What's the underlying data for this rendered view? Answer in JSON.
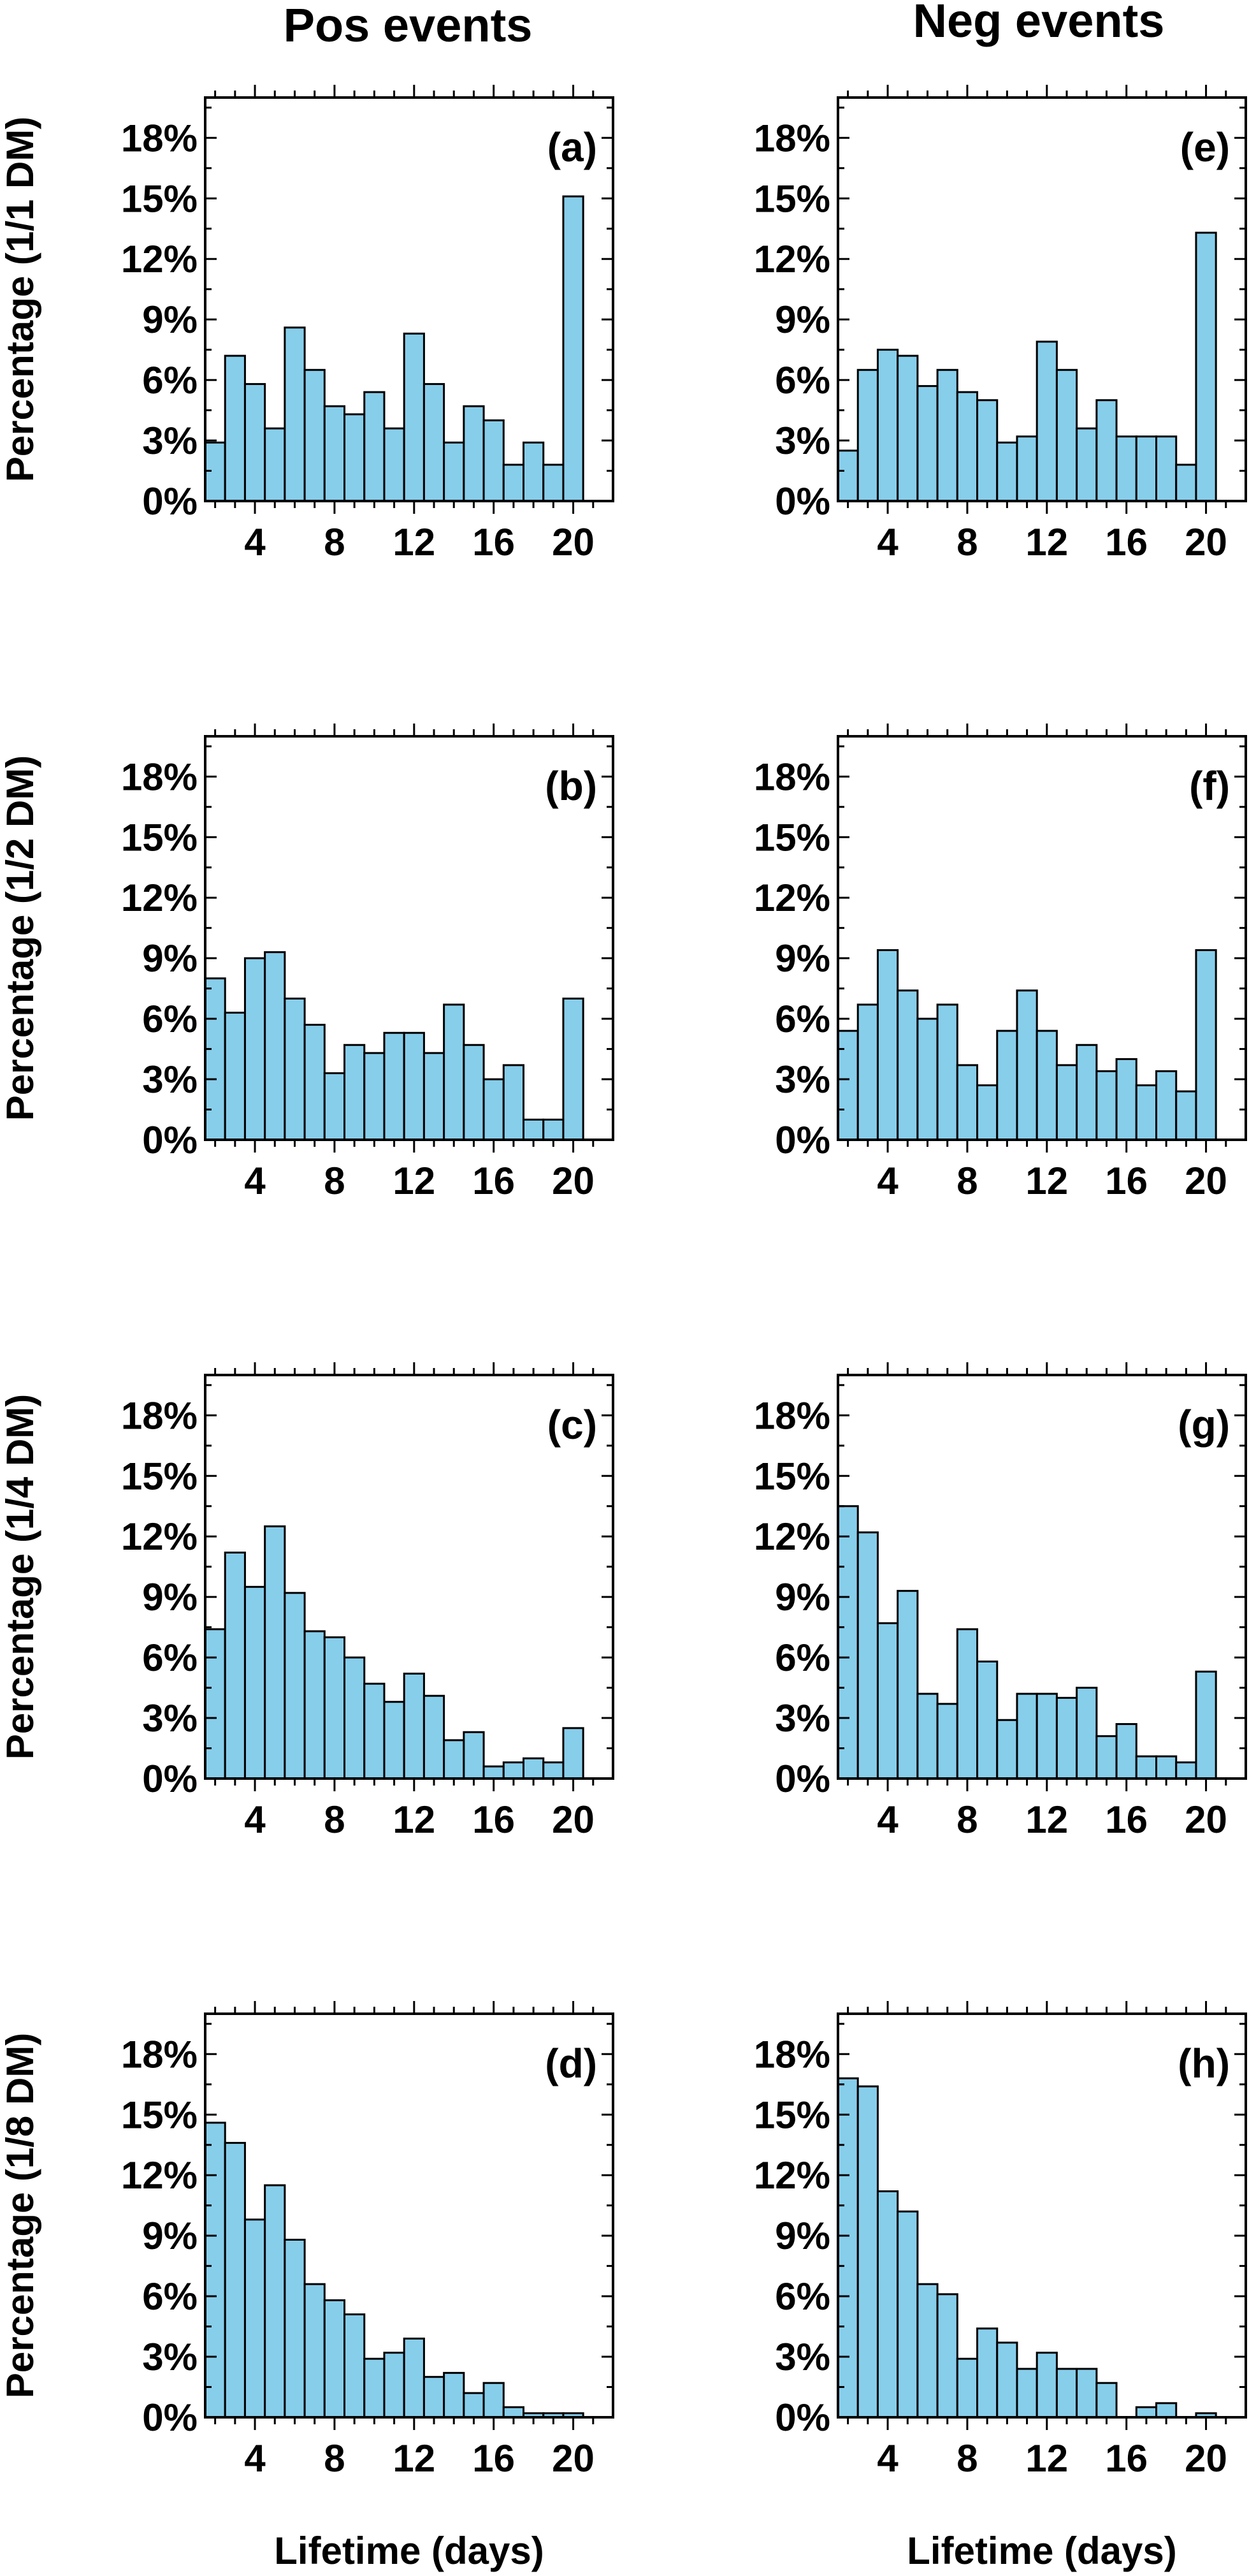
{
  "column_titles": [
    "Pos events",
    "Neg events"
  ],
  "chart_data": [
    {
      "type": "bar",
      "panel_label": "(a)",
      "column": 0,
      "row": 0,
      "ylabel": "Percentage (1/1 DM)",
      "xlabel": "",
      "x": [
        2,
        3,
        4,
        5,
        6,
        7,
        8,
        9,
        10,
        11,
        12,
        13,
        14,
        15,
        16,
        17,
        18,
        19,
        20,
        21
      ],
      "values": [
        2.9,
        7.2,
        5.8,
        3.6,
        8.6,
        6.5,
        4.7,
        4.3,
        5.4,
        3.6,
        8.3,
        5.8,
        2.9,
        4.7,
        4.0,
        1.8,
        2.9,
        1.8,
        15.1,
        0
      ],
      "ylim": [
        0,
        20
      ],
      "yticks": [
        "0%",
        "3%",
        "6%",
        "9%",
        "12%",
        "15%",
        "18%"
      ],
      "xticks": [
        "4",
        "8",
        "12",
        "16",
        "20"
      ]
    },
    {
      "type": "bar",
      "panel_label": "(b)",
      "column": 0,
      "row": 1,
      "ylabel": "Percentage (1/2 DM)",
      "xlabel": "",
      "x": [
        2,
        3,
        4,
        5,
        6,
        7,
        8,
        9,
        10,
        11,
        12,
        13,
        14,
        15,
        16,
        17,
        18,
        19,
        20,
        21
      ],
      "values": [
        8.0,
        6.3,
        9.0,
        9.3,
        7.0,
        5.7,
        3.3,
        4.7,
        4.3,
        5.3,
        5.3,
        4.3,
        6.7,
        4.7,
        3.0,
        3.7,
        1.0,
        1.0,
        7.0,
        0
      ],
      "ylim": [
        0,
        20
      ],
      "yticks": [
        "0%",
        "3%",
        "6%",
        "9%",
        "12%",
        "15%",
        "18%"
      ],
      "xticks": [
        "4",
        "8",
        "12",
        "16",
        "20"
      ]
    },
    {
      "type": "bar",
      "panel_label": "(c)",
      "column": 0,
      "row": 2,
      "ylabel": "Percentage (1/4 DM)",
      "xlabel": "",
      "x": [
        2,
        3,
        4,
        5,
        6,
        7,
        8,
        9,
        10,
        11,
        12,
        13,
        14,
        15,
        16,
        17,
        18,
        19,
        20,
        21
      ],
      "values": [
        7.4,
        11.2,
        9.5,
        12.5,
        9.2,
        7.3,
        7.0,
        6.0,
        4.7,
        3.8,
        5.2,
        4.1,
        1.9,
        2.3,
        0.6,
        0.8,
        1.0,
        0.8,
        2.5,
        0
      ],
      "ylim": [
        0,
        20
      ],
      "yticks": [
        "0%",
        "3%",
        "6%",
        "9%",
        "12%",
        "15%",
        "18%"
      ],
      "xticks": [
        "4",
        "8",
        "12",
        "16",
        "20"
      ]
    },
    {
      "type": "bar",
      "panel_label": "(d)",
      "column": 0,
      "row": 3,
      "ylabel": "Percentage (1/8 DM)",
      "xlabel": "Lifetime (days)",
      "x": [
        2,
        3,
        4,
        5,
        6,
        7,
        8,
        9,
        10,
        11,
        12,
        13,
        14,
        15,
        16,
        17,
        18,
        19,
        20,
        21
      ],
      "values": [
        14.6,
        13.6,
        9.8,
        11.5,
        8.8,
        6.6,
        5.8,
        5.1,
        2.9,
        3.2,
        3.9,
        2.0,
        2.2,
        1.2,
        1.7,
        0.5,
        0.2,
        0.2,
        0.2,
        0
      ],
      "ylim": [
        0,
        20
      ],
      "yticks": [
        "0%",
        "3%",
        "6%",
        "9%",
        "12%",
        "15%",
        "18%"
      ],
      "xticks": [
        "4",
        "8",
        "12",
        "16",
        "20"
      ]
    },
    {
      "type": "bar",
      "panel_label": "(e)",
      "column": 1,
      "row": 0,
      "ylabel": "",
      "xlabel": "",
      "x": [
        2,
        3,
        4,
        5,
        6,
        7,
        8,
        9,
        10,
        11,
        12,
        13,
        14,
        15,
        16,
        17,
        18,
        19,
        20,
        21
      ],
      "values": [
        2.5,
        6.5,
        7.5,
        7.2,
        5.7,
        6.5,
        5.4,
        5.0,
        2.9,
        3.2,
        7.9,
        6.5,
        3.6,
        5.0,
        3.2,
        3.2,
        3.2,
        1.8,
        13.3,
        0
      ],
      "ylim": [
        0,
        20
      ],
      "yticks": [
        "0%",
        "3%",
        "6%",
        "9%",
        "12%",
        "15%",
        "18%"
      ],
      "xticks": [
        "4",
        "8",
        "12",
        "16",
        "20"
      ]
    },
    {
      "type": "bar",
      "panel_label": "(f)",
      "column": 1,
      "row": 1,
      "ylabel": "",
      "xlabel": "",
      "x": [
        2,
        3,
        4,
        5,
        6,
        7,
        8,
        9,
        10,
        11,
        12,
        13,
        14,
        15,
        16,
        17,
        18,
        19,
        20,
        21
      ],
      "values": [
        5.4,
        6.7,
        9.4,
        7.4,
        6.0,
        6.7,
        3.7,
        2.7,
        5.4,
        7.4,
        5.4,
        3.7,
        4.7,
        3.4,
        4.0,
        2.7,
        3.4,
        2.4,
        9.4,
        0
      ],
      "ylim": [
        0,
        20
      ],
      "yticks": [
        "0%",
        "3%",
        "6%",
        "9%",
        "12%",
        "15%",
        "18%"
      ],
      "xticks": [
        "4",
        "8",
        "12",
        "16",
        "20"
      ]
    },
    {
      "type": "bar",
      "panel_label": "(g)",
      "column": 1,
      "row": 2,
      "ylabel": "",
      "xlabel": "",
      "x": [
        2,
        3,
        4,
        5,
        6,
        7,
        8,
        9,
        10,
        11,
        12,
        13,
        14,
        15,
        16,
        17,
        18,
        19,
        20,
        21
      ],
      "values": [
        13.5,
        12.2,
        7.7,
        9.3,
        4.2,
        3.7,
        7.4,
        5.8,
        2.9,
        4.2,
        4.2,
        4.0,
        4.5,
        2.1,
        2.7,
        1.1,
        1.1,
        0.8,
        5.3,
        0
      ],
      "ylim": [
        0,
        20
      ],
      "yticks": [
        "0%",
        "3%",
        "6%",
        "9%",
        "12%",
        "15%",
        "18%"
      ],
      "xticks": [
        "4",
        "8",
        "12",
        "16",
        "20"
      ]
    },
    {
      "type": "bar",
      "panel_label": "(h)",
      "column": 1,
      "row": 3,
      "ylabel": "",
      "xlabel": "Lifetime (days)",
      "x": [
        2,
        3,
        4,
        5,
        6,
        7,
        8,
        9,
        10,
        11,
        12,
        13,
        14,
        15,
        16,
        17,
        18,
        19,
        20,
        21
      ],
      "values": [
        16.8,
        16.4,
        11.2,
        10.2,
        6.6,
        6.1,
        2.9,
        4.4,
        3.7,
        2.4,
        3.2,
        2.4,
        2.4,
        1.7,
        0,
        0.5,
        0.7,
        0,
        0.2,
        0
      ],
      "ylim": [
        0,
        20
      ],
      "yticks": [
        "0%",
        "3%",
        "6%",
        "9%",
        "12%",
        "15%",
        "18%"
      ],
      "xticks": [
        "4",
        "8",
        "12",
        "16",
        "20"
      ]
    }
  ]
}
